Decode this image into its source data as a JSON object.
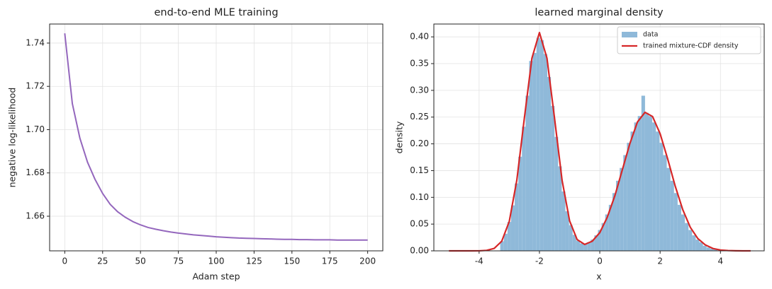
{
  "chart_data": [
    {
      "type": "line",
      "title": "end-to-end MLE training",
      "x_label": "Adam step",
      "y_label": "negative log-likelihood",
      "color": "#9467bd",
      "grid": true,
      "x": [
        0,
        5,
        10,
        15,
        20,
        25,
        30,
        35,
        40,
        45,
        50,
        55,
        60,
        65,
        70,
        75,
        80,
        85,
        90,
        95,
        100,
        105,
        110,
        115,
        120,
        125,
        130,
        135,
        140,
        145,
        150,
        155,
        160,
        165,
        170,
        175,
        180,
        185,
        190,
        195,
        200
      ],
      "values": [
        1.7445,
        1.712,
        1.696,
        1.685,
        1.677,
        1.6705,
        1.6655,
        1.662,
        1.6595,
        1.6575,
        1.656,
        1.6548,
        1.654,
        1.6533,
        1.6527,
        1.6522,
        1.6518,
        1.6514,
        1.6511,
        1.6508,
        1.6505,
        1.6503,
        1.6501,
        1.6499,
        1.6498,
        1.6497,
        1.6496,
        1.6495,
        1.6494,
        1.6493,
        1.6493,
        1.6492,
        1.6492,
        1.6491,
        1.6491,
        1.6491,
        1.649,
        1.649,
        1.649,
        1.649,
        1.649
      ],
      "xlim": [
        -10,
        210
      ],
      "ylim": [
        1.644,
        1.7488
      ],
      "xticks": [
        0,
        25,
        50,
        75,
        100,
        125,
        150,
        175,
        200
      ],
      "yticks": [
        1.66,
        1.68,
        {
          "value": 1.7,
          "label": "1.70"
        },
        1.72,
        1.74
      ]
    },
    {
      "type": "histogram",
      "title": "learned marginal density",
      "x_label": "x",
      "y_label": "density",
      "grid": true,
      "legend": "upper right",
      "bins": [
        -3.3,
        -3.18,
        -3.06,
        -2.94,
        -2.82,
        -2.7,
        -2.58,
        -2.46,
        -2.34,
        -2.22,
        -2.1,
        -1.98,
        -1.86,
        -1.74,
        -1.62,
        -1.5,
        -1.38,
        -1.26,
        -1.14,
        -1.02,
        -0.9,
        -0.78,
        -0.66,
        -0.54,
        -0.42,
        -0.3,
        -0.18,
        -0.06,
        0.06,
        0.18,
        0.3,
        0.42,
        0.54,
        0.66,
        0.78,
        0.9,
        1.02,
        1.14,
        1.26,
        1.38,
        1.5,
        1.62,
        1.74,
        1.86,
        1.98,
        2.1,
        2.22,
        2.34,
        2.46,
        2.58,
        2.7,
        2.82,
        2.94,
        3.06,
        3.18,
        3.3,
        3.42,
        3.54,
        3.66,
        3.78,
        3.9
      ],
      "series": [
        {
          "name": "data",
          "color": "#8fb9d9",
          "values": [
            0.018,
            0.032,
            0.054,
            0.085,
            0.126,
            0.176,
            0.232,
            0.29,
            0.355,
            0.37,
            0.398,
            0.394,
            0.368,
            0.325,
            0.271,
            0.213,
            0.158,
            0.111,
            0.074,
            0.048,
            0.03,
            0.019,
            0.014,
            0.013,
            0.016,
            0.021,
            0.029,
            0.039,
            0.052,
            0.068,
            0.086,
            0.108,
            0.131,
            0.155,
            0.179,
            0.202,
            0.223,
            0.24,
            0.252,
            0.29,
            0.258,
            0.252,
            0.24,
            0.223,
            0.202,
            0.179,
            0.155,
            0.131,
            0.108,
            0.086,
            0.068,
            0.052,
            0.039,
            0.029,
            0.021,
            0.016,
            0.0095,
            0.0063,
            0.004,
            0.0026
          ]
        }
      ],
      "overlay": {
        "type": "line",
        "name": "trained mixture-CDF density",
        "color": "#d62728",
        "x": [
          -5,
          -4.75,
          -4.5,
          -4.25,
          -4,
          -3.75,
          -3.5,
          -3.25,
          -3,
          -2.75,
          -2.5,
          -2.25,
          -2,
          -1.75,
          -1.5,
          -1.25,
          -1,
          -0.75,
          -0.5,
          -0.25,
          0,
          0.25,
          0.5,
          0.75,
          1,
          1.25,
          1.5,
          1.75,
          2,
          2.25,
          2.5,
          2.75,
          3,
          3.25,
          3.5,
          3.75,
          4,
          4.25,
          4.5,
          4.75,
          5
        ],
        "values": [
          0,
          0,
          0,
          0,
          0.0001,
          0.0009,
          0.0045,
          0.018,
          0.055,
          0.132,
          0.248,
          0.36,
          0.408,
          0.36,
          0.248,
          0.132,
          0.056,
          0.021,
          0.012,
          0.018,
          0.034,
          0.063,
          0.103,
          0.152,
          0.201,
          0.241,
          0.259,
          0.251,
          0.219,
          0.172,
          0.121,
          0.077,
          0.044,
          0.023,
          0.011,
          0.0044,
          0.0016,
          0.0006,
          0.0002,
          0,
          0
        ]
      },
      "xlim": [
        -5.5,
        5.45
      ],
      "ylim": [
        0,
        0.424
      ],
      "xticks": [
        -4,
        -2,
        0,
        2,
        4
      ],
      "yticks": [
        {
          "value": 0,
          "label": "0.00"
        },
        {
          "value": 0.05,
          "label": "0.05"
        },
        {
          "value": 0.1,
          "label": "0.10"
        },
        {
          "value": 0.15,
          "label": "0.15"
        },
        {
          "value": 0.2,
          "label": "0.20"
        },
        {
          "value": 0.25,
          "label": "0.25"
        },
        {
          "value": 0.3,
          "label": "0.30"
        },
        {
          "value": 0.35,
          "label": "0.35"
        },
        {
          "value": 0.4,
          "label": "0.40"
        }
      ]
    }
  ]
}
